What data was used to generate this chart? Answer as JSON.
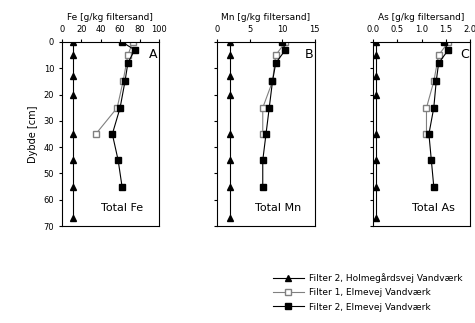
{
  "fe_hol_depth": [
    0,
    5,
    13,
    20,
    35,
    45,
    55,
    67
  ],
  "fe_hol_vals": [
    12,
    12,
    12,
    12,
    12,
    12,
    12,
    12
  ],
  "fe_elm1_depth": [
    0,
    5,
    15,
    25,
    35
  ],
  "fe_elm1_vals": [
    73,
    68,
    63,
    57,
    35
  ],
  "fe_elm2_depth": [
    0,
    3,
    8,
    15,
    25,
    35,
    45,
    55
  ],
  "fe_elm2_vals": [
    62,
    75,
    68,
    65,
    60,
    52,
    58,
    62
  ],
  "mn_hol_depth": [
    0,
    5,
    13,
    20,
    35,
    45,
    55,
    67
  ],
  "mn_hol_vals": [
    2,
    2,
    2,
    2,
    2,
    2,
    2,
    2
  ],
  "mn_elm1_depth": [
    0,
    5,
    15,
    25,
    35
  ],
  "mn_elm1_vals": [
    10.5,
    9,
    8.5,
    7,
    7
  ],
  "mn_elm2_depth": [
    0,
    3,
    8,
    15,
    25,
    35,
    45,
    55
  ],
  "mn_elm2_vals": [
    10,
    10.5,
    9,
    8.5,
    8,
    7.5,
    7,
    7
  ],
  "as_hol_depth": [
    0,
    5,
    13,
    20,
    35,
    45,
    55,
    67
  ],
  "as_hol_vals": [
    0.07,
    0.07,
    0.07,
    0.07,
    0.07,
    0.07,
    0.07,
    0.07
  ],
  "as_elm1_depth": [
    0,
    5,
    15,
    25,
    35
  ],
  "as_elm1_vals": [
    1.55,
    1.35,
    1.25,
    1.1,
    1.1
  ],
  "as_elm2_depth": [
    0,
    3,
    8,
    15,
    25,
    35,
    45,
    55
  ],
  "as_elm2_vals": [
    1.45,
    1.55,
    1.35,
    1.3,
    1.25,
    1.15,
    1.2,
    1.25
  ],
  "fe_xlim": [
    0,
    100
  ],
  "fe_xticks": [
    0,
    20,
    40,
    60,
    80,
    100
  ],
  "mn_xlim": [
    0,
    15
  ],
  "mn_xticks": [
    0,
    5,
    10,
    15
  ],
  "as_xlim": [
    0,
    2
  ],
  "as_xticks": [
    0,
    0.5,
    1.0,
    1.5,
    2.0
  ],
  "ylim": [
    70,
    0
  ],
  "yticks": [
    0,
    10,
    20,
    30,
    40,
    50,
    60,
    70
  ],
  "fe_xlabel": "Fe [g/kg filtersand]",
  "mn_xlabel": "Mn [g/kg filtersand]",
  "as_xlabel": "As [g/kg filtersand]",
  "ylabel": "Dybde [cm]",
  "fe_label": "Total Fe",
  "mn_label": "Total Mn",
  "as_label": "Total As",
  "panel_labels": [
    "A",
    "B",
    "C"
  ],
  "color_hol": "black",
  "color_elm1": "gray",
  "color_elm2": "black",
  "legend_labels": [
    "Filter 2, Holmegårdsvej Vandværk",
    "Filter 1, Elmevej Vandværk",
    "Filter 2, Elmevej Vandværk"
  ]
}
